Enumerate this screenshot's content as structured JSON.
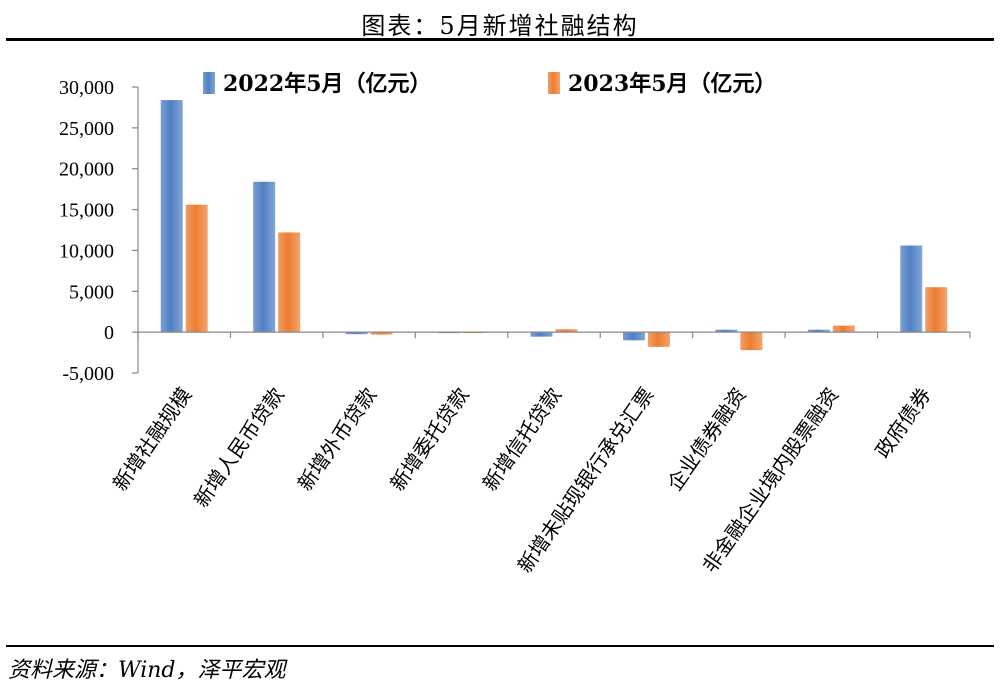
{
  "figure_title": "图表：5月新增社融结构",
  "source": "资料来源：Wind，泽平宏观",
  "colors": {
    "series_2022": "#4f7fc4",
    "series_2023": "#ed7d31"
  },
  "chart_data": {
    "type": "bar",
    "title": "",
    "xlabel": "",
    "ylabel": "",
    "categories": [
      "新增社融规模",
      "新增人民币贷款",
      "新增外币贷款",
      "新增委托贷款",
      "新增信托贷款",
      "新增未贴现银行承兑汇票",
      "企业债券融资",
      "非金融企业境内股票融资",
      "政府债券"
    ],
    "series": [
      {
        "name": "2022年5月（亿元）",
        "values": [
          28400,
          18400,
          -250,
          -100,
          -550,
          -1000,
          300,
          300,
          10600
        ]
      },
      {
        "name": "2023年5月（亿元）",
        "values": [
          15600,
          12200,
          -300,
          -50,
          350,
          -1800,
          -2200,
          800,
          5500
        ]
      }
    ],
    "ylim": [
      -5000,
      30000
    ],
    "yticks": [
      -5000,
      0,
      5000,
      10000,
      15000,
      20000,
      25000,
      30000
    ],
    "ytick_labels": [
      "-5,000",
      "0",
      "5,000",
      "10,000",
      "15,000",
      "20,000",
      "25,000",
      "30,000"
    ],
    "grid": false,
    "legend_position": "top"
  }
}
